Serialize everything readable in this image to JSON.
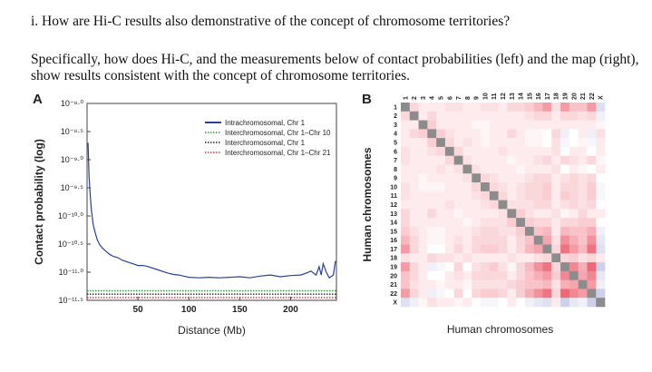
{
  "question": {
    "line1": "i. How are Hi-C results also demonstrative of the concept of chromosome territories?",
    "line2": "Specifically, how does Hi-C, and the measurements below of contact probabilities (left) and the map (right), show results consistent with the concept of chromosome territories."
  },
  "panel_a": {
    "letter": "A",
    "legend": [
      {
        "label": "Intrachromosomal, Chr 1",
        "color": "#2b3f9a",
        "style": "solid"
      },
      {
        "label": "Interchromosomal, Chr 1–Chr 10",
        "color": "#2e9a3e",
        "style": "dotted"
      },
      {
        "label": "Interchromosomal, Chr 1",
        "color": "#222222",
        "style": "dotted"
      },
      {
        "label": "Interchromosomal, Chr 1–Chr 21",
        "color": "#d2323a",
        "style": "dotted"
      }
    ]
  },
  "panel_b": {
    "letter": "B",
    "ylabel": "Human chromosomes",
    "xlabel": "Human chromosomes",
    "chromosomes": [
      "1",
      "2",
      "3",
      "4",
      "5",
      "6",
      "7",
      "8",
      "9",
      "10",
      "11",
      "12",
      "13",
      "14",
      "15",
      "16",
      "17",
      "18",
      "19",
      "20",
      "21",
      "22",
      "X"
    ]
  },
  "chart_data": [
    {
      "type": "line",
      "xlabel": "Distance (Mb)",
      "ylabel": "Contact probability (log)",
      "x_ticks": [
        50,
        100,
        150,
        200
      ],
      "y_ticks": [
        "10⁻⁸·⁰",
        "10⁻⁸·⁵",
        "10⁻⁹·⁰",
        "10⁻⁹·⁵",
        "10⁻¹⁰·⁰",
        "10⁻¹⁰·⁵",
        "10⁻¹¹·⁰",
        "10⁻¹¹·⁵"
      ],
      "xlim": [
        0,
        245
      ],
      "ylim": [
        -11.5,
        -8.0
      ],
      "series": [
        {
          "name": "Intrachromosomal, Chr 1",
          "x": [
            1,
            2,
            3,
            4,
            5,
            6,
            8,
            10,
            12,
            15,
            18,
            22,
            26,
            30,
            35,
            40,
            45,
            50,
            55,
            60,
            65,
            70,
            75,
            80,
            85,
            90,
            95,
            100,
            110,
            120,
            130,
            140,
            150,
            160,
            170,
            180,
            190,
            200,
            210,
            215,
            220,
            225,
            228,
            230,
            232,
            235,
            238,
            242,
            244
          ],
          "y": [
            -8.7,
            -9.3,
            -9.6,
            -9.85,
            -10.0,
            -10.15,
            -10.3,
            -10.42,
            -10.5,
            -10.57,
            -10.62,
            -10.68,
            -10.72,
            -10.74,
            -10.79,
            -10.82,
            -10.85,
            -10.88,
            -10.88,
            -10.9,
            -10.93,
            -10.96,
            -10.99,
            -11.02,
            -11.04,
            -11.05,
            -11.07,
            -11.09,
            -11.1,
            -11.09,
            -11.1,
            -11.09,
            -11.08,
            -11.1,
            -11.07,
            -11.05,
            -11.08,
            -11.06,
            -11.05,
            -11.02,
            -10.98,
            -11.05,
            -10.9,
            -11.05,
            -10.85,
            -11.0,
            -11.1,
            -11.05,
            -10.8
          ]
        },
        {
          "name": "Interchromosomal, Chr 1–Chr 10",
          "x": [
            0,
            245
          ],
          "y": [
            -11.33,
            -11.33
          ]
        },
        {
          "name": "Interchromosomal, Chr 1",
          "x": [
            0,
            245
          ],
          "y": [
            -11.39,
            -11.39
          ]
        },
        {
          "name": "Interchromosomal, Chr 1–Chr 21",
          "x": [
            0,
            245
          ],
          "y": [
            -11.45,
            -11.45
          ]
        }
      ]
    },
    {
      "type": "heatmap",
      "rows": [
        "1",
        "2",
        "3",
        "4",
        "5",
        "6",
        "7",
        "8",
        "9",
        "10",
        "11",
        "12",
        "13",
        "14",
        "15",
        "16",
        "17",
        "18",
        "19",
        "20",
        "21",
        "22",
        "X"
      ],
      "cols": [
        "1",
        "2",
        "3",
        "4",
        "5",
        "6",
        "7",
        "8",
        "9",
        "10",
        "11",
        "12",
        "13",
        "14",
        "15",
        "16",
        "17",
        "18",
        "19",
        "20",
        "21",
        "22",
        "X"
      ],
      "colors": {
        "diagonal": "#8c8c8c",
        "enriched": "#e8374a",
        "neutral": "#ffffff",
        "depleted": "#5a67b8"
      },
      "values": [
        [
          0,
          0.2,
          0.1,
          0.1,
          0.1,
          0.15,
          0.15,
          0.1,
          0.1,
          0.15,
          0.15,
          0.1,
          0.2,
          0.2,
          0.25,
          0.35,
          0.5,
          0.15,
          0.5,
          0.3,
          0.3,
          0.5,
          -0.2
        ],
        [
          0.2,
          0,
          0.1,
          0.2,
          0.1,
          0.1,
          0.1,
          0.1,
          0.1,
          0.1,
          0.1,
          0.1,
          0.1,
          0.1,
          0.15,
          0.2,
          0.2,
          0.1,
          0.2,
          0.2,
          0.15,
          0.2,
          -0.1
        ],
        [
          0.1,
          0.1,
          0,
          0.25,
          0.1,
          0.1,
          0.1,
          0.1,
          0.05,
          0.05,
          0.1,
          0.1,
          0.1,
          0.1,
          0.1,
          0.1,
          0.1,
          0.1,
          0.1,
          0.1,
          0.1,
          0.1,
          0.05
        ],
        [
          0.1,
          0.2,
          0.25,
          0,
          0.25,
          0.15,
          0.1,
          0.1,
          0.1,
          0.05,
          0.1,
          0.1,
          0.2,
          0.1,
          0.05,
          0.05,
          0.0,
          0.2,
          -0.1,
          0.0,
          0.1,
          -0.1,
          0.15
        ],
        [
          0.1,
          0.1,
          0.1,
          0.25,
          0,
          0.2,
          0.1,
          0.15,
          0.1,
          0.05,
          0.1,
          0.1,
          0.1,
          0.1,
          0.05,
          0.05,
          0.0,
          0.15,
          -0.05,
          0.0,
          0.05,
          -0.05,
          0.1
        ],
        [
          0.15,
          0.1,
          0.1,
          0.15,
          0.2,
          0,
          0.2,
          0.1,
          0.1,
          0.1,
          0.1,
          0.15,
          0.1,
          0.1,
          0.1,
          0.1,
          0.1,
          0.15,
          0.0,
          0.1,
          0.1,
          0.0,
          0.1
        ],
        [
          0.15,
          0.1,
          0.1,
          0.1,
          0.1,
          0.2,
          0,
          0.15,
          0.1,
          0.1,
          0.1,
          0.1,
          0.05,
          0.1,
          0.1,
          0.15,
          0.2,
          0.1,
          0.2,
          0.15,
          0.1,
          0.2,
          0.05
        ],
        [
          0.1,
          0.1,
          0.1,
          0.1,
          0.15,
          0.1,
          0.15,
          0,
          0.15,
          0.1,
          0.1,
          0.1,
          0.1,
          0.05,
          0.1,
          0.1,
          0.1,
          0.15,
          0.0,
          0.1,
          0.05,
          0.0,
          0.1
        ],
        [
          0.1,
          0.1,
          0.05,
          0.1,
          0.1,
          0.1,
          0.1,
          0.15,
          0,
          0.2,
          0.15,
          0.1,
          0.1,
          0.1,
          0.15,
          0.2,
          0.2,
          0.1,
          0.15,
          0.2,
          0.15,
          0.2,
          0.0
        ],
        [
          0.15,
          0.1,
          0.05,
          0.05,
          0.05,
          0.1,
          0.1,
          0.1,
          0.2,
          0,
          0.2,
          0.15,
          0.1,
          0.15,
          0.2,
          0.2,
          0.25,
          0.1,
          0.2,
          0.2,
          0.15,
          0.25,
          -0.05
        ],
        [
          0.15,
          0.1,
          0.1,
          0.1,
          0.1,
          0.1,
          0.1,
          0.1,
          0.15,
          0.2,
          0,
          0.2,
          0.1,
          0.15,
          0.2,
          0.2,
          0.25,
          0.1,
          0.25,
          0.2,
          0.15,
          0.25,
          -0.05
        ],
        [
          0.1,
          0.1,
          0.1,
          0.1,
          0.1,
          0.15,
          0.1,
          0.1,
          0.1,
          0.15,
          0.2,
          0,
          0.15,
          0.15,
          0.15,
          0.2,
          0.2,
          0.1,
          0.15,
          0.2,
          0.15,
          0.2,
          0.0
        ],
        [
          0.2,
          0.1,
          0.1,
          0.2,
          0.1,
          0.1,
          0.05,
          0.1,
          0.1,
          0.1,
          0.1,
          0.15,
          0,
          0.25,
          0.15,
          0.1,
          0.1,
          0.15,
          0.05,
          0.1,
          0.2,
          0.1,
          0.1
        ],
        [
          0.2,
          0.1,
          0.1,
          0.1,
          0.1,
          0.1,
          0.1,
          0.05,
          0.1,
          0.15,
          0.15,
          0.15,
          0.25,
          0,
          0.25,
          0.2,
          0.2,
          0.1,
          0.2,
          0.2,
          0.25,
          0.25,
          0.0
        ],
        [
          0.25,
          0.15,
          0.1,
          0.05,
          0.05,
          0.1,
          0.1,
          0.1,
          0.15,
          0.2,
          0.2,
          0.15,
          0.15,
          0.25,
          0,
          0.3,
          0.35,
          0.1,
          0.35,
          0.3,
          0.3,
          0.4,
          -0.1
        ],
        [
          0.35,
          0.2,
          0.1,
          0.05,
          0.05,
          0.1,
          0.15,
          0.1,
          0.2,
          0.2,
          0.2,
          0.2,
          0.1,
          0.2,
          0.3,
          0,
          0.45,
          0.15,
          0.55,
          0.4,
          0.3,
          0.55,
          -0.15
        ],
        [
          0.5,
          0.2,
          0.1,
          0.0,
          0.0,
          0.1,
          0.2,
          0.1,
          0.2,
          0.25,
          0.25,
          0.2,
          0.1,
          0.2,
          0.35,
          0.45,
          0,
          0.2,
          0.7,
          0.5,
          0.35,
          0.7,
          -0.2
        ],
        [
          0.15,
          0.1,
          0.1,
          0.2,
          0.15,
          0.15,
          0.1,
          0.15,
          0.1,
          0.1,
          0.1,
          0.1,
          0.15,
          0.1,
          0.1,
          0.15,
          0.2,
          0,
          0.2,
          0.25,
          0.15,
          0.2,
          0.1
        ],
        [
          0.5,
          0.2,
          0.1,
          -0.1,
          -0.05,
          0.0,
          0.2,
          0.0,
          0.15,
          0.2,
          0.25,
          0.15,
          0.05,
          0.2,
          0.35,
          0.55,
          0.7,
          0.2,
          0,
          0.6,
          0.4,
          0.75,
          -0.3
        ],
        [
          0.3,
          0.2,
          0.1,
          0.0,
          0.0,
          0.1,
          0.15,
          0.1,
          0.2,
          0.2,
          0.2,
          0.2,
          0.1,
          0.2,
          0.3,
          0.4,
          0.5,
          0.25,
          0.6,
          0,
          0.45,
          0.6,
          -0.15
        ],
        [
          0.3,
          0.15,
          0.1,
          0.1,
          0.05,
          0.1,
          0.1,
          0.05,
          0.15,
          0.15,
          0.15,
          0.15,
          0.2,
          0.25,
          0.3,
          0.3,
          0.35,
          0.15,
          0.4,
          0.45,
          0,
          0.5,
          -0.1
        ],
        [
          0.5,
          0.2,
          0.1,
          -0.1,
          -0.05,
          0.0,
          0.2,
          0.0,
          0.2,
          0.25,
          0.25,
          0.2,
          0.1,
          0.25,
          0.4,
          0.55,
          0.7,
          0.2,
          0.75,
          0.6,
          0.5,
          0,
          -0.3
        ],
        [
          -0.2,
          -0.1,
          0.05,
          0.15,
          0.1,
          0.1,
          0.05,
          0.1,
          0.0,
          -0.05,
          -0.05,
          0.0,
          0.1,
          0.0,
          -0.1,
          -0.15,
          -0.2,
          0.1,
          -0.3,
          -0.15,
          -0.1,
          -0.3,
          0
        ]
      ]
    }
  ]
}
